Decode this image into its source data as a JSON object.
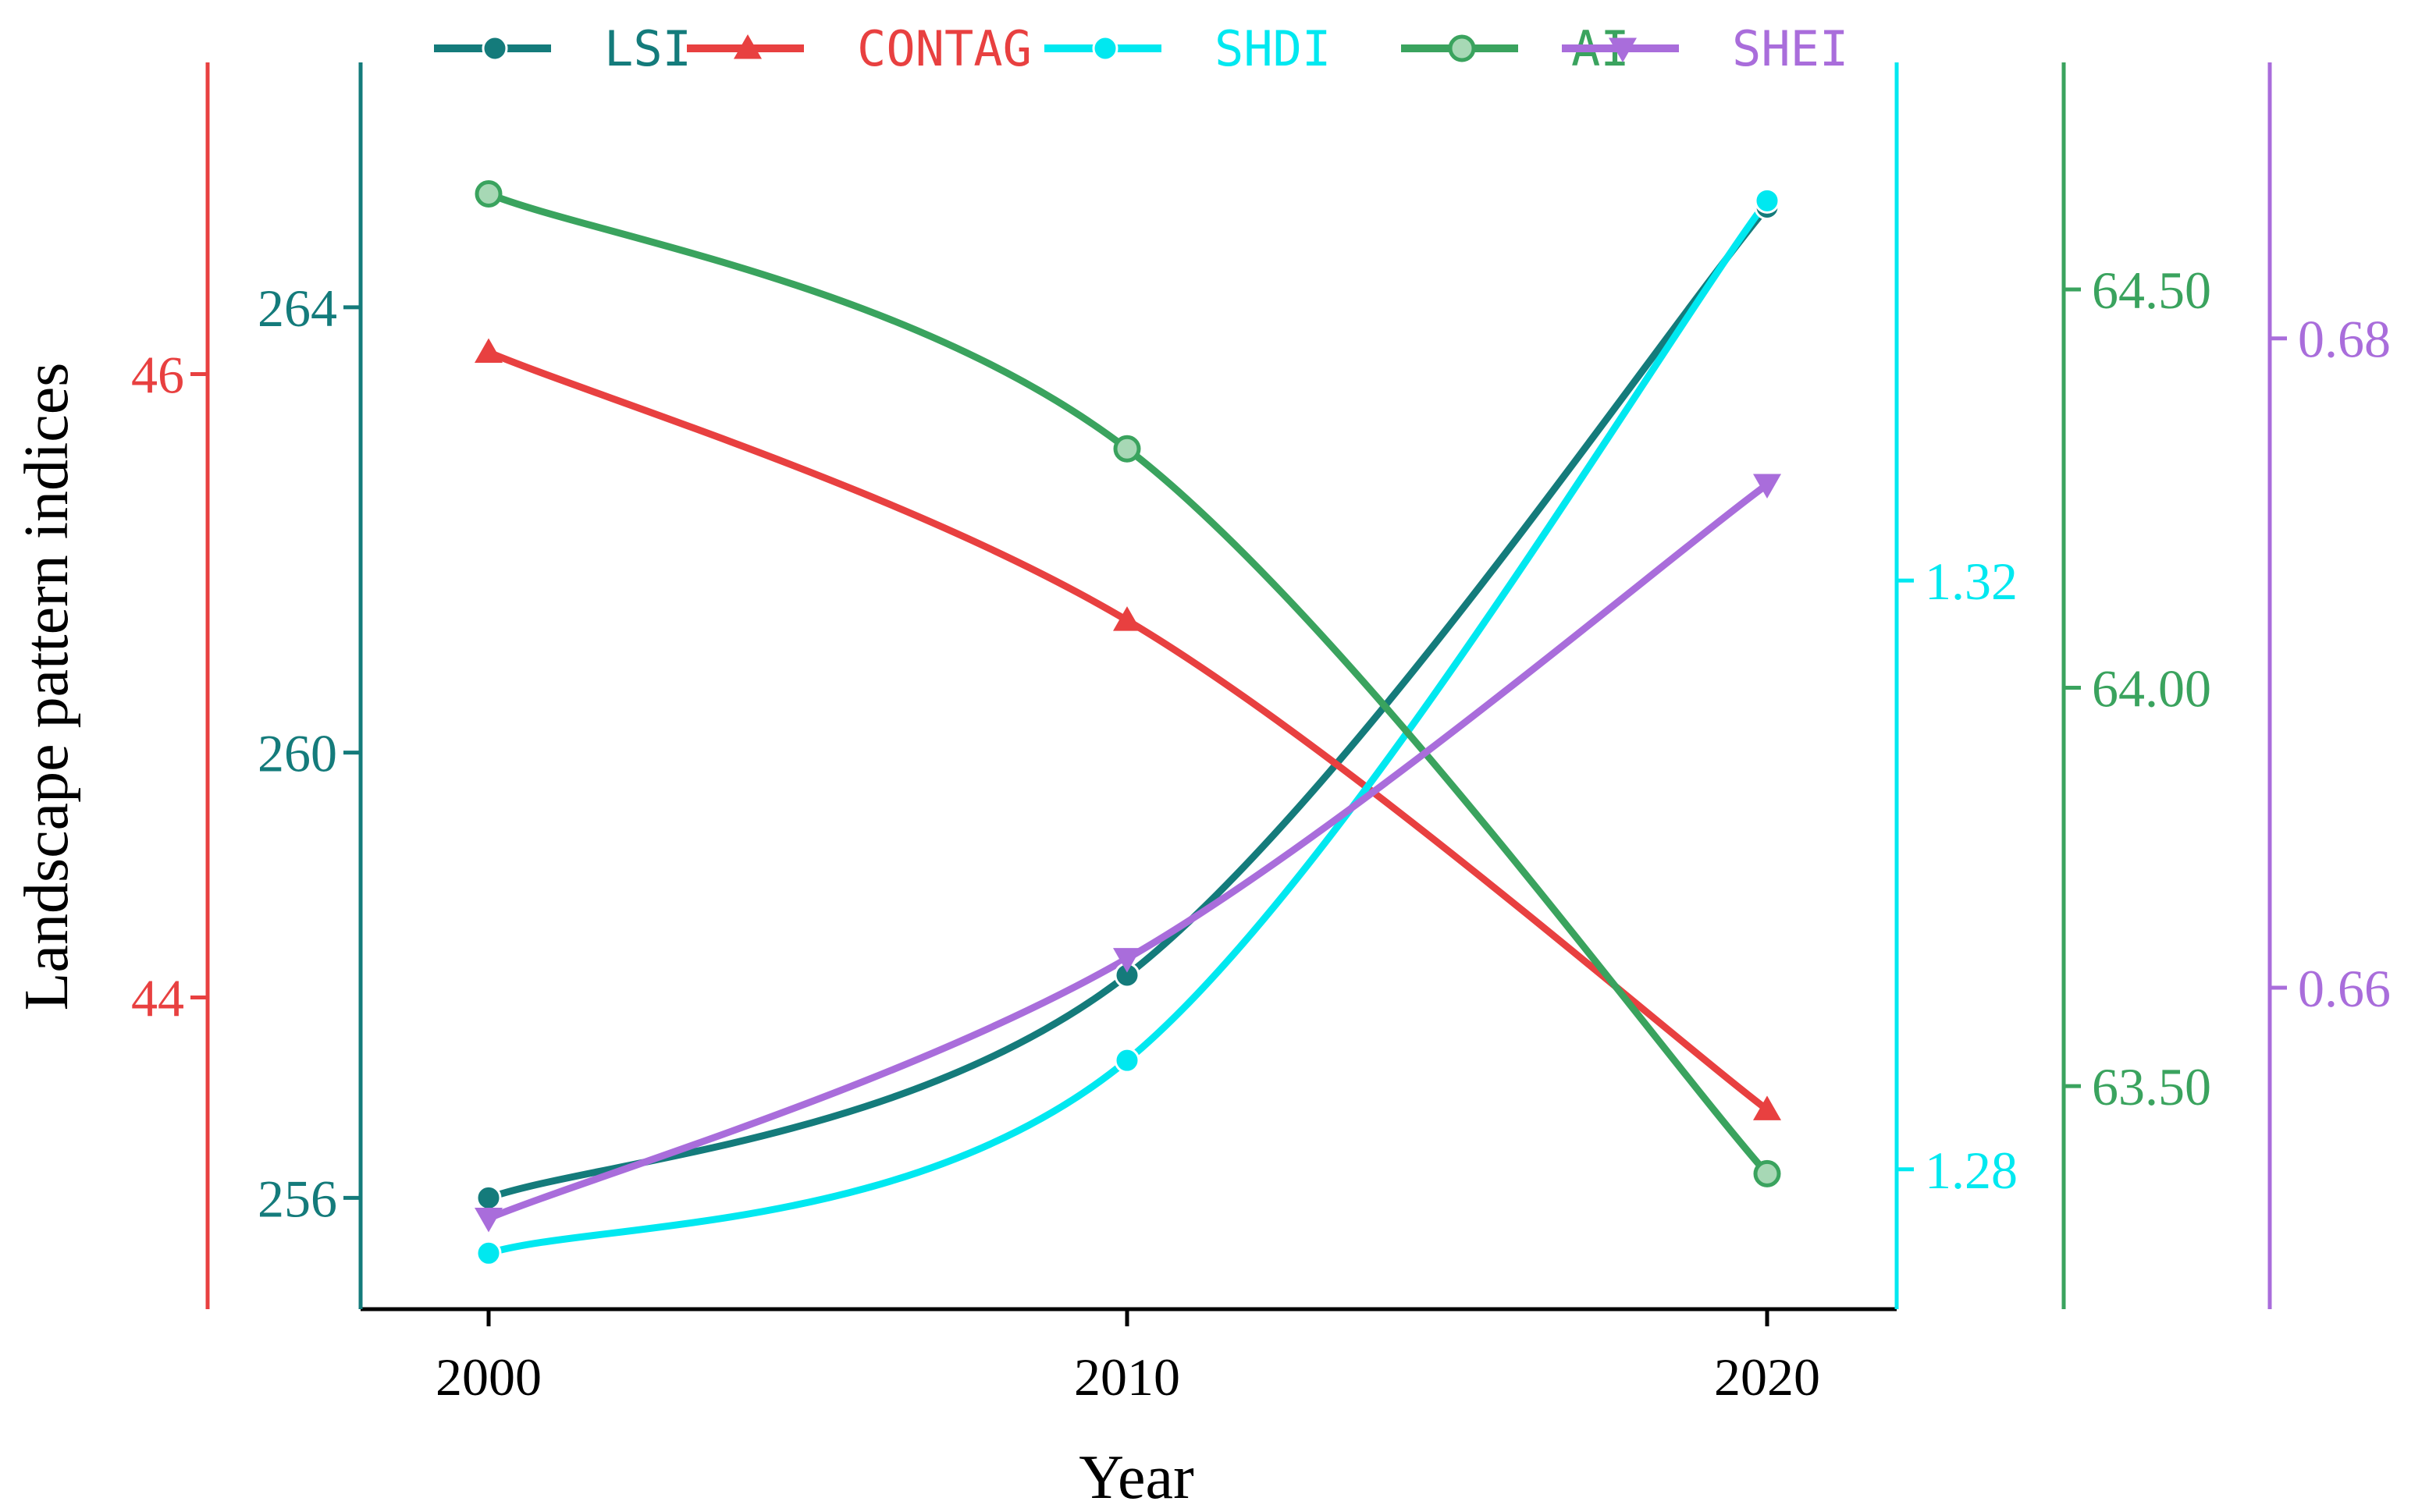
{
  "chart_data": {
    "type": "line",
    "title": "",
    "xlabel": "Year",
    "ylabel": "Landscape pattern indices",
    "categories": [
      "2000",
      "2010",
      "2020"
    ],
    "legend_position": "top",
    "grid": false,
    "series": [
      {
        "name": "LSI",
        "axis": "lsi",
        "color": "#147b7b",
        "marker": "circle",
        "values": [
          256.0,
          258.0,
          264.9
        ]
      },
      {
        "name": "CONTAG",
        "axis": "contag",
        "color": "#e84040",
        "marker": "triangle-up",
        "values": [
          46.07,
          45.21,
          43.64
        ]
      },
      {
        "name": "SHDI",
        "axis": "shdi",
        "color": "#00e8f0",
        "marker": "circle",
        "values": [
          1.2743,
          1.2874,
          1.3458
        ]
      },
      {
        "name": "AI",
        "axis": "ai",
        "color": "#3aa35e",
        "marker": "ring",
        "values": [
          64.62,
          64.3,
          63.39
        ]
      },
      {
        "name": "SHEI",
        "axis": "shei",
        "color": "#a96ddb",
        "marker": "triangle-down",
        "values": [
          0.6529,
          0.6609,
          0.6755
        ]
      }
    ],
    "axes": {
      "contag": {
        "color": "#e84040",
        "side": "left",
        "ylim": [
          43.0,
          47.0
        ],
        "ticks": [
          "44",
          "46"
        ]
      },
      "lsi": {
        "color": "#147b7b",
        "side": "left",
        "ylim": [
          255.0,
          266.2
        ],
        "ticks": [
          "256",
          "260",
          "264"
        ]
      },
      "shdi": {
        "color": "#00e8f0",
        "side": "right",
        "ylim": [
          1.2705,
          1.3552
        ],
        "ticks": [
          "1.28",
          "1.32"
        ]
      },
      "ai": {
        "color": "#3aa35e",
        "side": "right",
        "ylim": [
          63.22,
          64.785
        ],
        "ticks": [
          "63.50",
          "64.00",
          "64.50"
        ]
      },
      "shei": {
        "color": "#a96ddb",
        "side": "right",
        "ylim": [
          0.6501,
          0.6885
        ],
        "ticks": [
          "0.66",
          "0.68"
        ]
      }
    }
  }
}
